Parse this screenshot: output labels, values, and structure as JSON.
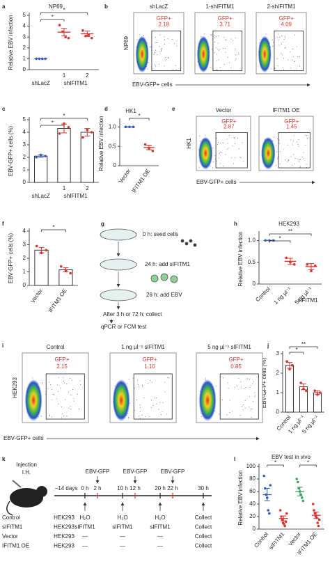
{
  "chart_data": [
    {
      "panel": "a",
      "type": "dot",
      "title": "NP69",
      "y_label": "Relative EBV infection",
      "categories": [
        "shLacZ",
        "1",
        "2"
      ],
      "group_label": "shIFITM1",
      "values": [
        1,
        3.45,
        3.3
      ],
      "errors": [
        0,
        0.35,
        0.25
      ],
      "points": [
        [
          1,
          1,
          1,
          1
        ],
        [
          4.1,
          3.5,
          3.0,
          2.9
        ],
        [
          3.6,
          3.1,
          3.2,
          2.9
        ]
      ],
      "colors": [
        "#3a5bbf",
        "#d9342b",
        "#d9342b"
      ],
      "ylim": [
        0,
        5
      ],
      "yticks": [
        0,
        1,
        2,
        3,
        4,
        5
      ],
      "significance": [
        "*",
        "*"
      ]
    },
    {
      "panel": "c",
      "type": "bar",
      "y_label": "EBV-GFP+ cells (%)",
      "categories": [
        "shLacZ",
        "1",
        "2"
      ],
      "group_label": "shIFITM1",
      "values": [
        2.1,
        4.3,
        4.0
      ],
      "errors": [
        0.1,
        0.35,
        0.3
      ],
      "points": [
        [
          2.0,
          2.2,
          2.1
        ],
        [
          3.9,
          4.7,
          4.4
        ],
        [
          3.6,
          4.2,
          4.0
        ]
      ],
      "colors": [
        "#3a5bbf",
        "#d9342b",
        "#d9342b"
      ],
      "ylim": [
        0,
        5
      ],
      "yticks": [
        0,
        1,
        2,
        3,
        4,
        5
      ],
      "significance": [
        "*",
        "*"
      ]
    },
    {
      "panel": "d",
      "type": "dot",
      "title": "HK1",
      "y_label": "Relative EBV infection",
      "categories": [
        "Vector",
        "IFITM1 OE"
      ],
      "values": [
        1,
        0.47
      ],
      "errors": [
        0,
        0.06
      ],
      "points": [
        [
          1,
          1,
          1
        ],
        [
          0.55,
          0.45,
          0.38
        ]
      ],
      "colors": [
        "#3a5bbf",
        "#d9342b"
      ],
      "ylim": [
        0,
        1.15
      ],
      "yticks": [
        0,
        0.5,
        {
          "value": 1,
          "label": "1.0"
        }
      ],
      "significance": [
        "*"
      ]
    },
    {
      "panel": "f",
      "type": "bar",
      "y_label": "EBV-GFP+ cells (%)",
      "categories": [
        "Vector",
        "IFITM1 OE"
      ],
      "values": [
        2.6,
        1.15
      ],
      "errors": [
        0.2,
        0.15
      ],
      "points": [
        [
          2.9,
          2.4,
          2.6
        ],
        [
          1.4,
          1.1,
          0.9
        ]
      ],
      "colors": [
        "#d9342b",
        "#d9342b"
      ],
      "ylim": [
        0,
        4
      ],
      "yticks": [
        0,
        1,
        2,
        3,
        4
      ],
      "significance": [
        "*"
      ]
    },
    {
      "panel": "h",
      "type": "dot",
      "title": "HEK293",
      "y_label": "Relative EBV infection",
      "categories": [
        "Control",
        "1 ng µl⁻¹",
        "5 ng µl⁻¹"
      ],
      "group_label": "sIFITM1",
      "values": [
        1,
        0.52,
        0.4
      ],
      "errors": [
        0,
        0.07,
        0.07
      ],
      "points": [
        [
          1,
          1,
          1
        ],
        [
          0.6,
          0.5,
          0.45
        ],
        [
          0.45,
          0.3,
          0.42
        ]
      ],
      "colors": [
        "#3a5bbf",
        "#d9342b",
        "#d9342b"
      ],
      "ylim": [
        0,
        1.15
      ],
      "yticks": [
        0,
        0.5,
        {
          "value": 1,
          "label": "1.0"
        }
      ],
      "significance": [
        "*",
        "**"
      ]
    },
    {
      "panel": "j",
      "type": "bar",
      "y_label": "EBV-GFP+ cells (%)",
      "categories": [
        "Control",
        "1 ng µl⁻¹",
        "5 ng µl⁻¹"
      ],
      "values": [
        2.4,
        1.3,
        1.0
      ],
      "errors": [
        0.15,
        0.15,
        0.1
      ],
      "points": [
        [
          2.6,
          2.2,
          2.4
        ],
        [
          1.5,
          1.2,
          1.1
        ],
        [
          1.1,
          0.9,
          1.0
        ]
      ],
      "colors": [
        "#d9342b",
        "#d9342b",
        "#d9342b"
      ],
      "ylim": [
        0,
        3
      ],
      "yticks": [
        0,
        1,
        2,
        3
      ],
      "significance": [
        "*",
        "**"
      ]
    },
    {
      "panel": "l",
      "type": "dot",
      "title": "EBV test in vivo",
      "y_label": "Relative EBV infection",
      "categories": [
        "Control",
        "sIFITM1",
        "Vector",
        "IFITM1 OE"
      ],
      "values": [
        55,
        17,
        60,
        22
      ],
      "errors": [
        10,
        4,
        7,
        5
      ],
      "points": [
        [
          85,
          65,
          55,
          50,
          30,
          25,
          70
        ],
        [
          30,
          20,
          15,
          10,
          8,
          5,
          12,
          25
        ],
        [
          80,
          75,
          65,
          60,
          55,
          50,
          45
        ],
        [
          40,
          30,
          25,
          20,
          18,
          10,
          5,
          15
        ]
      ],
      "colors": [
        "#3a5bbf",
        "#d9342b",
        "#3aa55a",
        "#d9342b"
      ],
      "ylim": [
        0,
        100
      ],
      "yticks": [
        0,
        20,
        40,
        60,
        80,
        100
      ],
      "significance": [
        "*",
        "*"
      ]
    }
  ],
  "flow_panels": [
    {
      "panel": "b",
      "y_label": "NP69",
      "x_label": "EBV-GFP+ cells",
      "plots": [
        {
          "title": "shLacZ",
          "gate_label": "GFP+",
          "percent": "2.18"
        },
        {
          "title": "1-shIFITM1",
          "gate_label": "GFP+",
          "percent": "3.71"
        },
        {
          "title": "2-shIFITM1",
          "gate_label": "GFP+",
          "percent": "4.09"
        }
      ]
    },
    {
      "panel": "e",
      "y_label": "HK1",
      "x_label": "EBV-GFP+ cells",
      "plots": [
        {
          "title": "Vector",
          "gate_label": "GFP+",
          "percent": "2.87"
        },
        {
          "title": "IFITM1 OE",
          "gate_label": "GFP+",
          "percent": "1.45"
        }
      ]
    },
    {
      "panel": "i",
      "y_label": "HEK293",
      "x_label": "EBV-GFP+ cells",
      "plots": [
        {
          "title": "Control",
          "gate_label": "GFP+",
          "percent": "2.15"
        },
        {
          "title": "1 ng µl⁻¹ sIFITM1",
          "gate_label": "GFP+",
          "percent": "1.10"
        },
        {
          "title": "5 ng µl⁻¹ sIFITM1",
          "gate_label": "GFP+",
          "percent": "0.85"
        }
      ]
    }
  ],
  "diagram_g": {
    "panel": "g",
    "steps": [
      "0 h: seed cells",
      "24 h: add sIFITM1",
      "26 h: add EBV",
      "After 3 h or 72 h: collect",
      "qPCR or FCM test"
    ]
  },
  "diagram_k": {
    "panel": "k",
    "injection": "Injection",
    "route": "I.H.",
    "start": "−14 days",
    "times": [
      "0 h",
      "2 h",
      "10 h",
      "12 h",
      "20 h",
      "22 h",
      "30 h"
    ],
    "events": [
      "EBV-GFP",
      "EBV-GFP",
      "EBV-GFP"
    ],
    "rows": [
      {
        "label": "Control",
        "cells": [
          "HEK293",
          "H₂O",
          "H₂O",
          "H₂O",
          "Collect"
        ]
      },
      {
        "label": "sIFITM1",
        "cells": [
          "HEK293",
          "sIFITM1",
          "sIFITM1",
          "sIFITM1",
          "Collect"
        ]
      },
      {
        "label": "Vector",
        "cells": [
          "HEK293",
          "—",
          "—",
          "—",
          "Collect"
        ]
      },
      {
        "label": "IFITM1 OE",
        "cells": [
          "HEK293",
          "—",
          "—",
          "—",
          "Collect"
        ]
      }
    ]
  }
}
